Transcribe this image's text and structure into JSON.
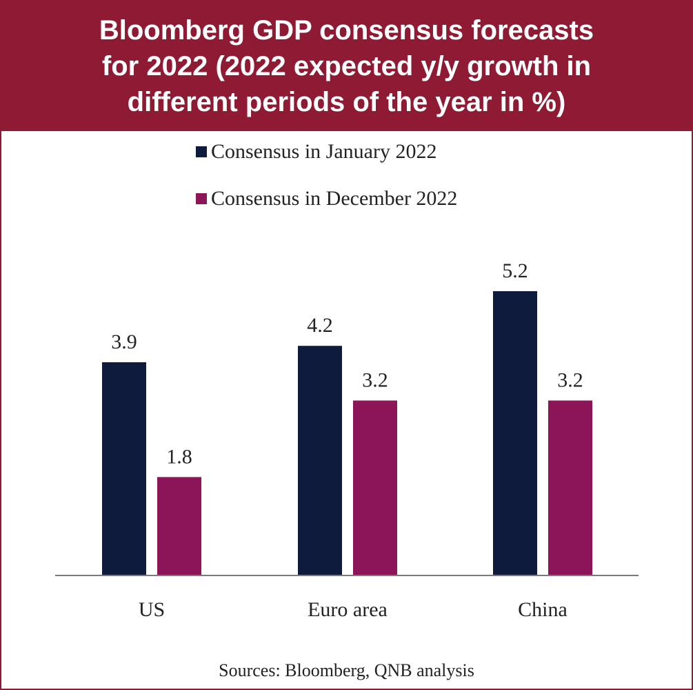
{
  "header": {
    "title_lines": [
      "Bloomberg GDP consensus forecasts",
      "for 2022 (2022 expected y/y growth in",
      "different periods of the year in %)"
    ]
  },
  "colors": {
    "header_bg": "#8e1a33",
    "series_jan": "#0f1b3d",
    "series_dec": "#8c1558"
  },
  "chart_data": {
    "type": "bar",
    "title": "Bloomberg GDP consensus forecasts for 2022 (2022 expected y/y growth in different periods of the year in %)",
    "categories": [
      "US",
      "Euro area",
      "China"
    ],
    "series": [
      {
        "name": "Consensus in January 2022",
        "values": [
          3.9,
          4.2,
          5.2
        ],
        "labels": [
          "3.9",
          "4.2",
          "5.2"
        ],
        "color": "#0f1b3d"
      },
      {
        "name": "Consensus in December 2022",
        "values": [
          1.8,
          3.2,
          3.2
        ],
        "labels": [
          "1.8",
          "3.2",
          "3.2"
        ],
        "color": "#8c1558"
      }
    ],
    "ylim": [
      0,
      5.2
    ],
    "legend_position": "top-center",
    "grid": false,
    "source": "Sources: Bloomberg, QNB analysis"
  }
}
